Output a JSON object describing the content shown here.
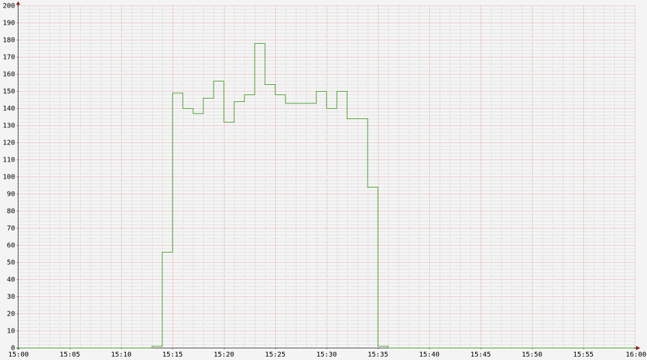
{
  "chart_data": {
    "type": "line",
    "step": true,
    "title": "",
    "xlabel": "",
    "ylabel": "",
    "xlim": [
      "15:00",
      "16:00"
    ],
    "ylim": [
      0,
      200
    ],
    "x_ticks": [
      "15:00",
      "15:05",
      "15:10",
      "15:15",
      "15:20",
      "15:25",
      "15:30",
      "15:35",
      "15:40",
      "15:45",
      "15:50",
      "15:55",
      "16:00"
    ],
    "y_ticks": [
      "0",
      "10",
      "20",
      "30",
      "40",
      "50",
      "60",
      "70",
      "80",
      "90",
      "100",
      "110",
      "120",
      "130",
      "140",
      "150",
      "160",
      "170",
      "180",
      "190",
      "200"
    ],
    "grid": true,
    "series": [
      {
        "color": "#4aa02c",
        "points": [
          [
            "15:00",
            0
          ],
          [
            "15:13",
            1
          ],
          [
            "15:14",
            56
          ],
          [
            "15:15",
            149
          ],
          [
            "15:16",
            140
          ],
          [
            "15:17",
            137
          ],
          [
            "15:18",
            146
          ],
          [
            "15:19",
            156
          ],
          [
            "15:20",
            132
          ],
          [
            "15:21",
            144
          ],
          [
            "15:22",
            148
          ],
          [
            "15:23",
            178
          ],
          [
            "15:24",
            154
          ],
          [
            "15:25",
            148
          ],
          [
            "15:26",
            143
          ],
          [
            "15:27",
            143
          ],
          [
            "15:28",
            143
          ],
          [
            "15:29",
            150
          ],
          [
            "15:30",
            140
          ],
          [
            "15:31",
            150
          ],
          [
            "15:32",
            134
          ],
          [
            "15:33",
            134
          ],
          [
            "15:34",
            94
          ],
          [
            "15:35",
            1
          ],
          [
            "15:36",
            0
          ],
          [
            "16:00",
            0
          ]
        ]
      }
    ]
  },
  "colors": {
    "background": "#f4f4f4",
    "major_grid": "#e7a6a6",
    "minor_grid": "#d6d6d6",
    "axis": "#4a4a4a",
    "arrow": "#8b1a1a"
  }
}
